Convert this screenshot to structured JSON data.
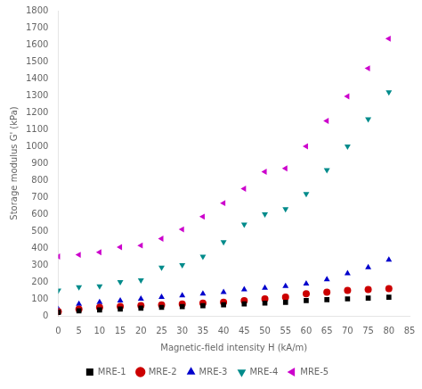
{
  "chart_data": {
    "type": "scatter",
    "x_label": "Magnetic-field intensity H (kA/m)",
    "y_label": "Storage modulus G' (kPa)",
    "x": [
      0,
      5,
      10,
      15,
      20,
      25,
      30,
      35,
      40,
      45,
      50,
      55,
      60,
      65,
      70,
      75,
      80
    ],
    "series": [
      {
        "name": "MRE-1",
        "color": "#000000",
        "marker": "square",
        "values": [
          20,
          30,
          35,
          40,
          45,
          50,
          55,
          60,
          65,
          70,
          75,
          80,
          90,
          95,
          100,
          105,
          110
        ]
      },
      {
        "name": "MRE-2",
        "color": "#cc0000",
        "marker": "circle",
        "values": [
          25,
          40,
          50,
          55,
          60,
          65,
          70,
          75,
          80,
          90,
          100,
          110,
          130,
          140,
          150,
          155,
          160
        ]
      },
      {
        "name": "MRE-3",
        "color": "#0000cc",
        "marker": "triangle-up",
        "values": [
          40,
          70,
          80,
          90,
          100,
          110,
          120,
          130,
          140,
          155,
          165,
          175,
          190,
          215,
          250,
          285,
          330
        ]
      },
      {
        "name": "MRE-4",
        "color": "#008B8B",
        "marker": "triangle-down",
        "values": [
          150,
          170,
          175,
          200,
          210,
          285,
          300,
          350,
          435,
          540,
          600,
          630,
          720,
          860,
          1000,
          1160,
          1320
        ]
      },
      {
        "name": "MRE-5",
        "color": "#cc00cc",
        "marker": "triangle-left",
        "values": [
          350,
          360,
          375,
          405,
          415,
          455,
          510,
          585,
          665,
          750,
          850,
          870,
          1000,
          1150,
          1295,
          1460,
          1635
        ]
      }
    ],
    "xlim": [
      0,
      85
    ],
    "xticks": [
      0,
      5,
      10,
      15,
      20,
      25,
      30,
      35,
      40,
      45,
      50,
      55,
      60,
      65,
      70,
      75,
      80,
      85
    ],
    "ylim": [
      0,
      1800
    ],
    "yticks": [
      0,
      100,
      200,
      300,
      400,
      500,
      600,
      700,
      800,
      900,
      1000,
      1100,
      1200,
      1300,
      1400,
      1500,
      1600,
      1700,
      1800
    ],
    "grid": false,
    "legend": "bottom"
  }
}
